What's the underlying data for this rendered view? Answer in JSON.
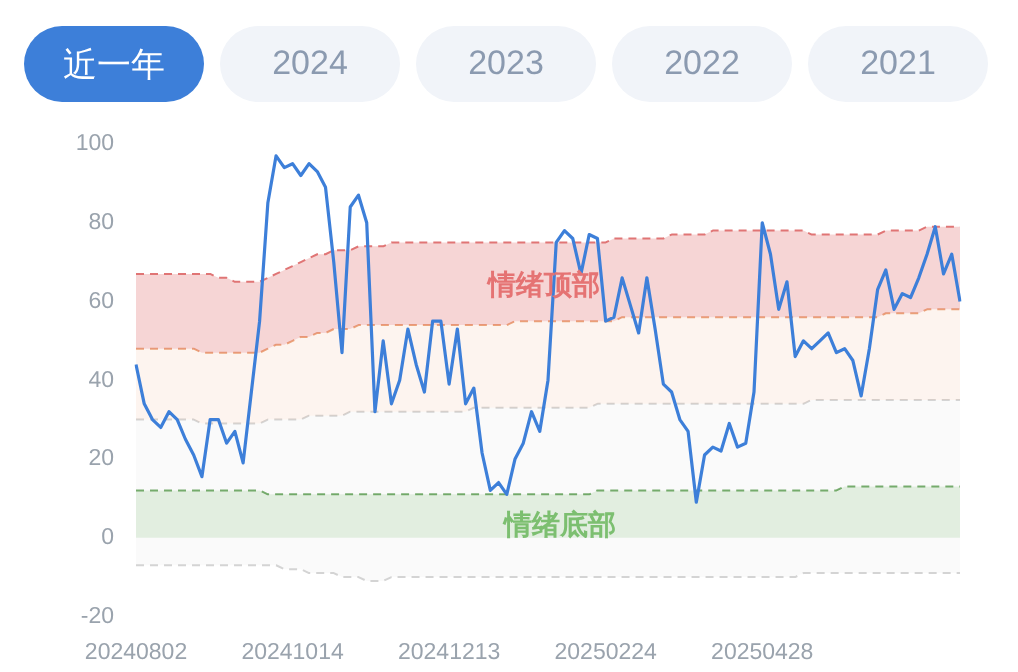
{
  "chart_data": {
    "type": "line",
    "annotations": [
      "近一年",
      "2024",
      "2023",
      "2022",
      "2021",
      "情绪顶部",
      "情绪底部"
    ],
    "categories": [
      "20240802",
      null,
      null,
      null,
      null,
      null,
      null,
      null,
      null,
      null,
      null,
      null,
      null,
      null,
      null,
      null,
      null,
      null,
      null,
      "20241014",
      null,
      null,
      null,
      null,
      null,
      null,
      null,
      null,
      null,
      null,
      null,
      null,
      null,
      null,
      null,
      null,
      null,
      null,
      "20241213",
      null,
      null,
      null,
      null,
      null,
      null,
      null,
      null,
      null,
      null,
      null,
      null,
      null,
      null,
      null,
      null,
      null,
      null,
      "20250224",
      null,
      null,
      null,
      null,
      null,
      null,
      null,
      null,
      null,
      null,
      null,
      null,
      null,
      null,
      null,
      null,
      null,
      null,
      "20250428",
      null,
      null,
      null,
      null,
      null,
      null,
      null,
      null,
      null,
      null,
      null,
      null,
      null,
      null,
      null,
      null,
      null,
      null,
      null,
      null,
      null,
      null,
      null,
      null
    ],
    "ylim": [
      -20,
      100
    ],
    "yticks": [
      -20,
      0,
      20,
      40,
      60,
      80,
      100
    ],
    "grid": false,
    "legend": false,
    "marker": "none",
    "series": [
      {
        "color": "#3d7fd9",
        "line_style": "solid",
        "values": [
          44,
          34,
          30,
          28,
          32,
          30,
          25,
          21,
          15.5,
          30,
          30,
          24,
          27,
          19,
          37,
          55,
          85,
          97,
          94,
          95,
          92,
          95,
          93,
          89,
          70,
          47,
          84,
          87,
          80,
          32,
          50,
          34,
          40,
          53,
          44,
          37,
          55,
          55,
          39,
          53,
          34,
          38,
          21.5,
          12,
          14,
          11,
          20,
          24,
          32,
          27,
          40,
          75,
          78,
          76,
          67,
          77,
          76,
          55,
          56,
          66,
          59,
          52,
          66,
          53,
          39,
          37,
          30,
          27,
          9,
          21,
          23,
          22,
          29,
          23,
          24,
          37,
          80,
          72,
          58,
          65,
          46,
          50,
          48,
          50,
          52,
          47,
          48,
          45,
          36,
          48,
          63,
          68,
          58,
          62,
          61,
          66,
          72,
          79,
          67,
          72,
          60
        ]
      },
      {
        "type": "area",
        "color": "#e07575",
        "line_style": "dashed",
        "values": [
          67,
          67,
          67,
          67,
          67,
          67,
          67,
          67,
          67,
          67,
          66,
          66,
          65,
          65,
          65,
          65,
          66,
          67,
          68,
          69,
          70,
          71,
          72,
          72,
          73,
          73,
          73,
          74,
          74,
          74,
          74,
          75,
          75,
          75,
          75,
          75,
          75,
          75,
          75,
          75,
          75,
          75,
          75,
          75,
          75,
          75,
          75,
          75,
          75,
          75,
          75,
          75,
          75,
          75,
          75,
          75,
          75,
          75,
          76,
          76,
          76,
          76,
          76,
          76,
          76,
          77,
          77,
          77,
          77,
          77,
          78,
          78,
          78,
          78,
          78,
          78,
          78,
          78,
          78,
          78,
          78,
          78,
          77,
          77,
          77,
          77,
          77,
          77,
          77,
          77,
          77,
          78,
          78,
          78,
          78,
          78,
          79,
          79,
          79,
          79,
          79
        ]
      },
      {
        "type": "area",
        "color": "#eba47a",
        "line_style": "dashed",
        "values": [
          48,
          48,
          48,
          48,
          48,
          48,
          48,
          48,
          47,
          47,
          47,
          47,
          47,
          47,
          47,
          47,
          48,
          49,
          49,
          50,
          51,
          51,
          52,
          52,
          53,
          53,
          53,
          54,
          54,
          54,
          54,
          54,
          54,
          54,
          54,
          54,
          54,
          54,
          54,
          54,
          54,
          54,
          54,
          54,
          54,
          54,
          55,
          55,
          55,
          55,
          55,
          55,
          55,
          55,
          55,
          55,
          55,
          55,
          55,
          56,
          56,
          56,
          56,
          56,
          56,
          56,
          56,
          56,
          56,
          56,
          56,
          56,
          56,
          56,
          56,
          56,
          56,
          56,
          56,
          56,
          56,
          56,
          56,
          56,
          56,
          56,
          56,
          56,
          56,
          56,
          56,
          57,
          57,
          57,
          57,
          57,
          58,
          58,
          58,
          58,
          58
        ]
      },
      {
        "type": "area",
        "color": "#d4d4d4",
        "line_style": "dashed",
        "values": [
          30,
          30,
          30,
          30,
          30,
          30,
          30,
          30,
          29,
          29,
          29,
          29,
          29,
          29,
          29,
          29,
          30,
          30,
          30,
          30,
          30,
          31,
          31,
          31,
          31,
          31,
          32,
          32,
          32,
          32,
          32,
          32,
          32,
          32,
          32,
          32,
          32,
          32,
          32,
          32,
          32,
          33,
          33,
          33,
          33,
          33,
          33,
          33,
          33,
          33,
          33,
          33,
          33,
          33,
          33,
          33,
          34,
          34,
          34,
          34,
          34,
          34,
          34,
          34,
          34,
          34,
          34,
          34,
          34,
          34,
          34,
          34,
          34,
          34,
          34,
          34,
          34,
          34,
          34,
          34,
          34,
          34,
          35,
          35,
          35,
          35,
          35,
          35,
          35,
          35,
          35,
          35,
          35,
          35,
          35,
          35,
          35,
          35,
          35,
          35,
          35
        ]
      },
      {
        "type": "area",
        "color": "#6fa865",
        "line_style": "dashed",
        "values": [
          12,
          12,
          12,
          12,
          12,
          12,
          12,
          12,
          12,
          12,
          12,
          12,
          12,
          12,
          12,
          12,
          11,
          11,
          11,
          11,
          11,
          11,
          11,
          11,
          11,
          11,
          11,
          11,
          11,
          11,
          11,
          11,
          11,
          11,
          11,
          11,
          11,
          11,
          11,
          11,
          11,
          11,
          11,
          11,
          11,
          11,
          11,
          11,
          11,
          11,
          11,
          11,
          11,
          11,
          11,
          11,
          12,
          12,
          12,
          12,
          12,
          12,
          12,
          12,
          12,
          12,
          12,
          12,
          12,
          12,
          12,
          12,
          12,
          12,
          12,
          12,
          12,
          12,
          12,
          12,
          12,
          12,
          12,
          12,
          12,
          12,
          13,
          13,
          13,
          13,
          13,
          13,
          13,
          13,
          13,
          13,
          13,
          13,
          13,
          13,
          13
        ]
      },
      {
        "type": "area",
        "color": "#d4d4d4",
        "line_style": "dashed",
        "values": [
          -7,
          -7,
          -7,
          -7,
          -7,
          -7,
          -7,
          -7,
          -7,
          -7,
          -7,
          -7,
          -7,
          -7,
          -7,
          -7,
          -7,
          -7,
          -8,
          -8,
          -8,
          -9,
          -9,
          -9,
          -9,
          -10,
          -10,
          -10,
          -11,
          -11,
          -11,
          -10,
          -10,
          -10,
          -10,
          -10,
          -10,
          -10,
          -10,
          -10,
          -10,
          -10,
          -10,
          -10,
          -10,
          -10,
          -10,
          -10,
          -10,
          -10,
          -10,
          -10,
          -10,
          -10,
          -10,
          -10,
          -10,
          -10,
          -10,
          -10,
          -10,
          -10,
          -10,
          -10,
          -10,
          -10,
          -10,
          -10,
          -10,
          -10,
          -10,
          -10,
          -10,
          -10,
          -10,
          -10,
          -10,
          -10,
          -10,
          -10,
          -10,
          -9,
          -9,
          -9,
          -9,
          -9,
          -9,
          -9,
          -9,
          -9,
          -9,
          -9,
          -9,
          -9,
          -9,
          -9,
          -9,
          -9,
          -9,
          -9,
          -9
        ]
      }
    ]
  }
}
